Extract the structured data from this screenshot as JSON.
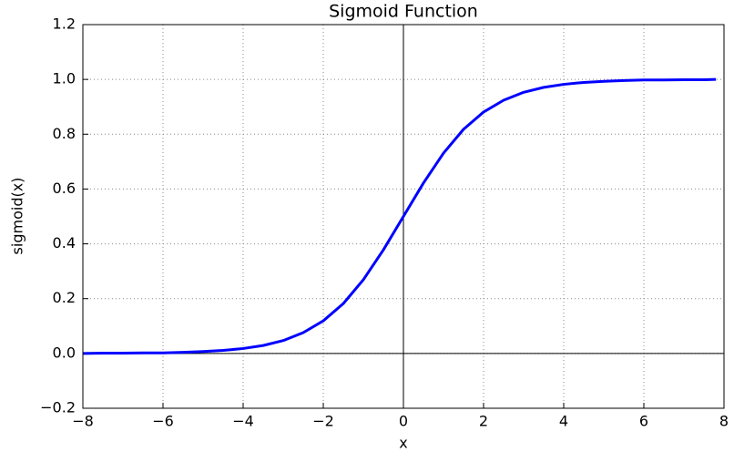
{
  "chart_data": {
    "type": "line",
    "title": "Sigmoid Function",
    "x_label": "x",
    "y_label": "sigmoid(x)",
    "x": [
      -8,
      -7.5,
      -7,
      -6.5,
      -6,
      -5.5,
      -5,
      -4.5,
      -4,
      -3.5,
      -3,
      -2.5,
      -2,
      -1.5,
      -1,
      -0.5,
      0,
      0.5,
      1,
      1.5,
      2,
      2.5,
      3,
      3.5,
      4,
      4.5,
      5,
      5.5,
      6,
      6.5,
      7,
      7.5,
      7.8
    ],
    "series": [
      {
        "color": "#0000ff",
        "values": [
          0.0,
          0.001,
          0.001,
          0.002,
          0.002,
          0.004,
          0.007,
          0.011,
          0.018,
          0.029,
          0.047,
          0.076,
          0.119,
          0.182,
          0.269,
          0.378,
          0.5,
          0.622,
          0.731,
          0.818,
          0.881,
          0.924,
          0.953,
          0.971,
          0.982,
          0.989,
          0.993,
          0.996,
          0.998,
          0.998,
          0.999,
          0.999,
          1.0
        ]
      }
    ],
    "xlim": [
      -8,
      8
    ],
    "xticks": [
      {
        "value": -8,
        "label": "−8"
      },
      {
        "value": -6,
        "label": "−6"
      },
      {
        "value": -4,
        "label": "−4"
      },
      {
        "value": -2,
        "label": "−2"
      },
      0,
      2,
      4,
      6,
      8
    ],
    "ylim": [
      -0.2,
      1.2
    ],
    "yticks": [
      {
        "value": -0.2,
        "label": "−0.2"
      },
      {
        "value": 0,
        "label": "0.0"
      },
      0.2,
      0.4,
      0.6,
      0.8,
      {
        "value": 1,
        "label": "1.0"
      },
      1.2
    ],
    "grid": true,
    "zero_lines": true
  }
}
